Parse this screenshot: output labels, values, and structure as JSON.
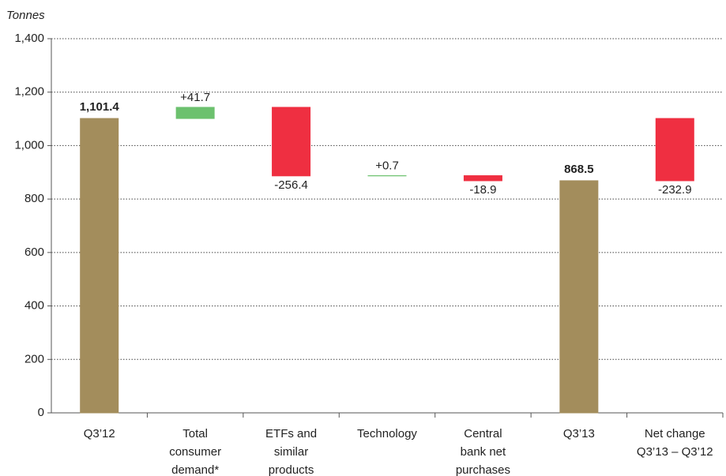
{
  "chart_data": {
    "type": "waterfall",
    "y_label": "Tonnes",
    "categories": [
      [
        "Q3’12"
      ],
      [
        "Total",
        "consumer",
        "demand*"
      ],
      [
        "ETFs and",
        "similar",
        "products"
      ],
      [
        "Technology"
      ],
      [
        "Central",
        "bank net",
        "purchases"
      ],
      [
        "Q3’13"
      ],
      [
        "Net change",
        "Q3’13 – Q3’12"
      ]
    ],
    "kinds": [
      "total",
      "delta",
      "delta",
      "delta",
      "delta",
      "total",
      "net"
    ],
    "values": [
      1101.4,
      41.7,
      -256.4,
      0.7,
      -18.9,
      868.5,
      -232.9
    ],
    "value_labels": [
      "1,101.4",
      "+41.7",
      "-256.4",
      "+0.7",
      "-18.9",
      "868.5",
      "-232.9"
    ],
    "colors": {
      "total": "#a38d5c",
      "increase": "#6cc16e",
      "decrease": "#ef2f41"
    },
    "ylim": [
      0,
      1400
    ],
    "yticks": [
      0,
      200,
      400,
      600,
      800,
      {
        "value": 1000,
        "label": "1,000"
      },
      {
        "value": 1200,
        "label": "1,200"
      },
      {
        "value": 1400,
        "label": "1,400"
      }
    ],
    "grid": true
  }
}
